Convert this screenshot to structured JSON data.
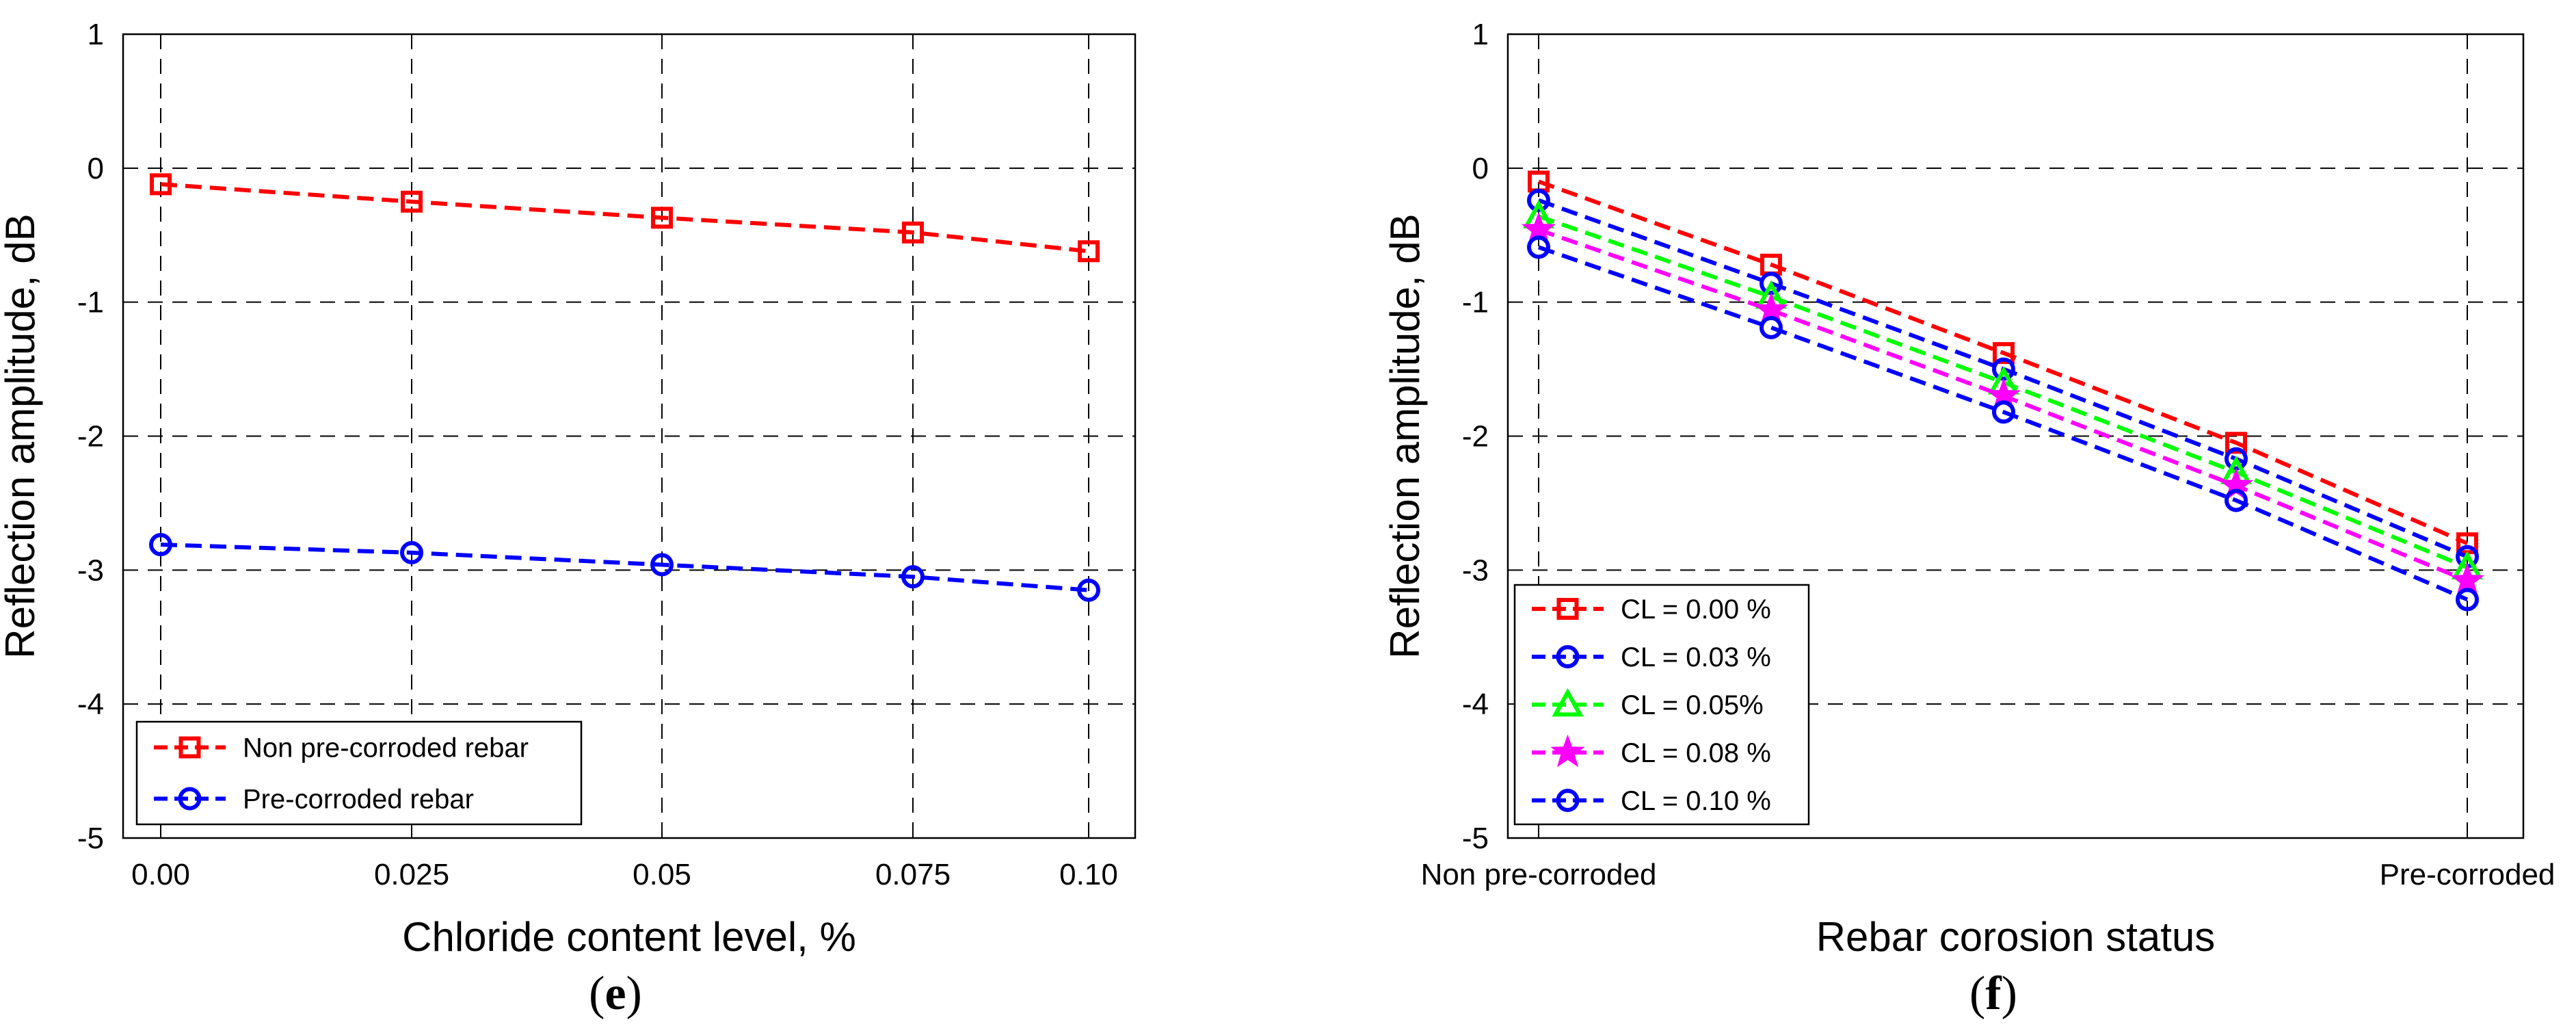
{
  "chart_data": [
    {
      "type": "line",
      "panel": "e",
      "caption_letter": "e",
      "xlabel": "Chloride content level, %",
      "ylabel": "Reflection amplitude, dB",
      "ylim": [
        -5,
        1
      ],
      "y_ticks": [
        "-5",
        "-4",
        "-3",
        "-2",
        "-1",
        "0",
        "1"
      ],
      "categories": [
        "0.00",
        "0.025",
        "0.05",
        "0.075",
        "0.10"
      ],
      "grid": true,
      "legend_position": "bottom-left",
      "series": [
        {
          "name": "Non pre-corroded rebar",
          "color": "#ff0000",
          "marker": "square",
          "values": [
            -0.12,
            -0.25,
            -0.37,
            -0.48,
            -0.62
          ]
        },
        {
          "name": "Pre-corroded rebar",
          "color": "#0000ff",
          "marker": "circle",
          "values": [
            -2.81,
            -2.87,
            -2.96,
            -3.05,
            -3.15
          ]
        }
      ]
    },
    {
      "type": "line",
      "panel": "f",
      "caption_letter": "f",
      "xlabel": "Rebar corosion status",
      "ylabel": "Reflection amplitude, dB",
      "ylim": [
        -5,
        1
      ],
      "y_ticks": [
        "-5",
        "-4",
        "-3",
        "-2",
        "-1",
        "0",
        "1"
      ],
      "categories": [
        "Non pre-corroded",
        "",
        "",
        "",
        "Pre-corroded"
      ],
      "grid": true,
      "legend_position": "bottom-left",
      "series": [
        {
          "name": "CL = 0.00 %",
          "color": "#ff0000",
          "marker": "square",
          "values": [
            -0.1,
            -0.72,
            -1.38,
            -2.05,
            -2.8
          ]
        },
        {
          "name": "CL = 0.03 %",
          "color": "#0000ff",
          "marker": "circle",
          "values": [
            -0.24,
            -0.86,
            -1.5,
            -2.17,
            -2.9
          ]
        },
        {
          "name": "CL = 0.05%",
          "color": "#00ff00",
          "marker": "triangle",
          "values": [
            -0.36,
            -0.96,
            -1.6,
            -2.27,
            -2.98
          ]
        },
        {
          "name": "CL = 0.08 %",
          "color": "#ff00ff",
          "marker": "star",
          "values": [
            -0.46,
            -1.06,
            -1.7,
            -2.37,
            -3.08
          ]
        },
        {
          "name": "CL = 0.10 %",
          "color": "#0000ff",
          "marker": "circle",
          "values": [
            -0.59,
            -1.19,
            -1.82,
            -2.48,
            -3.22
          ]
        }
      ]
    }
  ]
}
